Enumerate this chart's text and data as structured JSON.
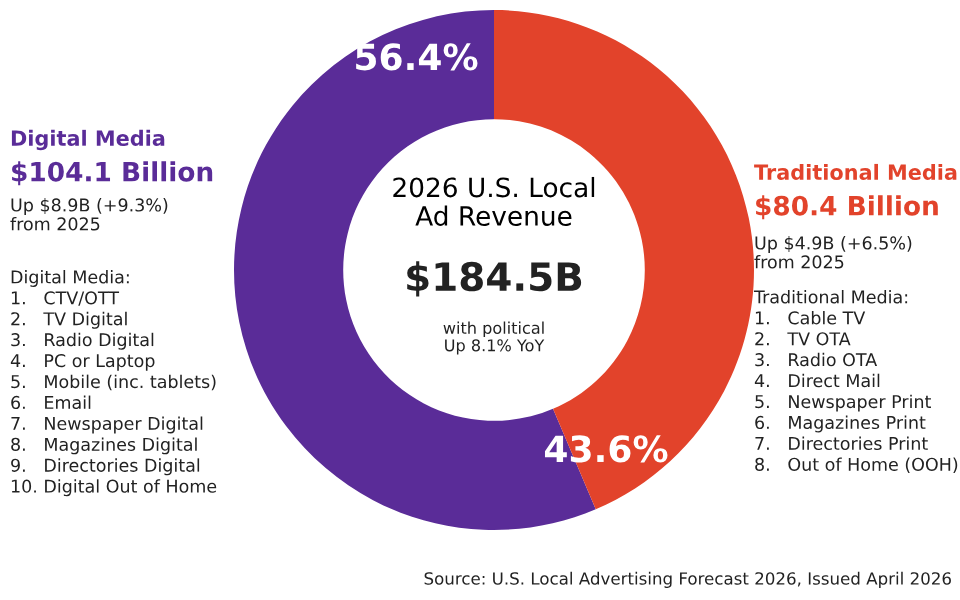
{
  "chart_data": {
    "type": "donut",
    "title": "2026 U.S. Local\nAd Revenue",
    "categories": [
      "Digital Media",
      "Traditional Media"
    ],
    "values": [
      56.4,
      43.6
    ],
    "colors": [
      "#5a2c98",
      "#e2432b"
    ],
    "value_labels": [
      "56.4%",
      "43.6%"
    ],
    "legend": false,
    "annotations": [
      "$104.1 Billion",
      "Up $8.9B (+9.3%)\nfrom 2025",
      "Digital Media:\n1.   CTV/OTT\n2.   TV Digital\n3.   Radio Digital\n4.   PC or Laptop\n5.   Mobile (inc. tablets)\n6.   Email\n7.   Newspaper Digital\n8.   Magazines Digital\n9.   Directories Digital\n10. Digital Out of Home",
      "$80.4 Billion",
      "Up $4.9B (+6.5%)\nfrom 2025",
      "Traditional Media:\n1.   Cable TV\n2.   TV OTA\n3.   Radio OTA\n4.   Direct Mail\n5.   Newspaper Print\n6.   Magazines Print\n7.   Directories Print\n8.   Out of Home (OOH)",
      "$184.5B",
      "with political\nUp 8.1% YoY",
      "Source: U.S. Local Advertising Forecast 2026, Issued April 2026"
    ]
  }
}
